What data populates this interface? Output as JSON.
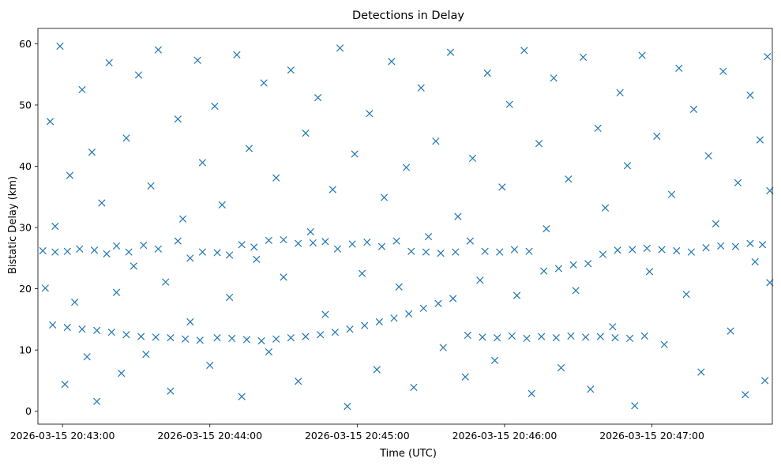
{
  "chart_data": {
    "type": "scatter",
    "title": "Detections in Delay",
    "xlabel": "Time (UTC)",
    "ylabel": "Bistatic Delay (km)",
    "marker": "x",
    "color": "#1f77b4",
    "grid": false,
    "legend": "none",
    "xlim": [
      "2026-03-15 20:42:50",
      "2026-03-15 20:47:49"
    ],
    "ylim": [
      -2.1,
      62.5
    ],
    "xticks": [
      "2026-03-15 20:43:00",
      "2026-03-15 20:44:00",
      "2026-03-15 20:45:00",
      "2026-03-15 20:46:00",
      "2026-03-15 20:47:00"
    ],
    "yticks": [
      0,
      10,
      20,
      30,
      40,
      50,
      60
    ],
    "series": [
      {
        "points": [
          [
            "2026-03-15 20:42:52",
            26.2
          ],
          [
            "2026-03-15 20:42:57",
            26.0
          ],
          [
            "2026-03-15 20:43:02",
            26.1
          ],
          [
            "2026-03-15 20:43:07",
            26.5
          ],
          [
            "2026-03-15 20:43:13",
            26.3
          ],
          [
            "2026-03-15 20:43:18",
            25.7
          ],
          [
            "2026-03-15 20:43:22",
            27.0
          ],
          [
            "2026-03-15 20:43:27",
            26.0
          ],
          [
            "2026-03-15 20:43:33",
            27.1
          ],
          [
            "2026-03-15 20:43:39",
            26.5
          ],
          [
            "2026-03-15 20:43:47",
            27.8
          ],
          [
            "2026-03-15 20:43:52",
            25.0
          ],
          [
            "2026-03-15 20:43:57",
            26.0
          ],
          [
            "2026-03-15 20:44:03",
            25.9
          ],
          [
            "2026-03-15 20:44:08",
            25.5
          ],
          [
            "2026-03-15 20:44:13",
            27.2
          ],
          [
            "2026-03-15 20:44:18",
            26.8
          ],
          [
            "2026-03-15 20:44:24",
            27.9
          ],
          [
            "2026-03-15 20:44:30",
            28.0
          ],
          [
            "2026-03-15 20:44:36",
            27.4
          ],
          [
            "2026-03-15 20:44:42",
            27.5
          ],
          [
            "2026-03-15 20:44:47",
            27.7
          ],
          [
            "2026-03-15 20:44:52",
            26.5
          ],
          [
            "2026-03-15 20:44:58",
            27.3
          ],
          [
            "2026-03-15 20:45:04",
            27.6
          ],
          [
            "2026-03-15 20:45:10",
            26.9
          ],
          [
            "2026-03-15 20:45:16",
            27.8
          ],
          [
            "2026-03-15 20:45:22",
            26.1
          ],
          [
            "2026-03-15 20:45:28",
            26.0
          ],
          [
            "2026-03-15 20:45:34",
            25.8
          ],
          [
            "2026-03-15 20:45:40",
            26.0
          ],
          [
            "2026-03-15 20:45:46",
            27.8
          ],
          [
            "2026-03-15 20:45:52",
            26.1
          ],
          [
            "2026-03-15 20:45:58",
            26.0
          ],
          [
            "2026-03-15 20:46:04",
            26.4
          ],
          [
            "2026-03-15 20:46:10",
            26.1
          ],
          [
            "2026-03-15 20:46:16",
            22.9
          ],
          [
            "2026-03-15 20:46:22",
            23.3
          ],
          [
            "2026-03-15 20:46:28",
            23.9
          ],
          [
            "2026-03-15 20:46:34",
            24.1
          ],
          [
            "2026-03-15 20:46:40",
            25.6
          ],
          [
            "2026-03-15 20:46:46",
            26.3
          ],
          [
            "2026-03-15 20:46:52",
            26.4
          ],
          [
            "2026-03-15 20:46:58",
            26.6
          ],
          [
            "2026-03-15 20:47:04",
            26.4
          ],
          [
            "2026-03-15 20:47:10",
            26.2
          ],
          [
            "2026-03-15 20:47:16",
            26.0
          ],
          [
            "2026-03-15 20:47:22",
            26.7
          ],
          [
            "2026-03-15 20:47:28",
            27.0
          ],
          [
            "2026-03-15 20:47:34",
            26.9
          ],
          [
            "2026-03-15 20:47:40",
            27.4
          ],
          [
            "2026-03-15 20:47:45",
            27.2
          ],
          [
            "2026-03-15 20:42:56",
            14.1
          ],
          [
            "2026-03-15 20:43:02",
            13.7
          ],
          [
            "2026-03-15 20:43:08",
            13.4
          ],
          [
            "2026-03-15 20:43:14",
            13.2
          ],
          [
            "2026-03-15 20:43:20",
            12.9
          ],
          [
            "2026-03-15 20:43:26",
            12.5
          ],
          [
            "2026-03-15 20:43:32",
            12.2
          ],
          [
            "2026-03-15 20:43:38",
            12.1
          ],
          [
            "2026-03-15 20:43:44",
            12.0
          ],
          [
            "2026-03-15 20:43:50",
            11.8
          ],
          [
            "2026-03-15 20:43:56",
            11.6
          ],
          [
            "2026-03-15 20:44:03",
            12.0
          ],
          [
            "2026-03-15 20:44:09",
            11.9
          ],
          [
            "2026-03-15 20:44:15",
            11.7
          ],
          [
            "2026-03-15 20:44:21",
            11.5
          ],
          [
            "2026-03-15 20:44:27",
            11.8
          ],
          [
            "2026-03-15 20:44:33",
            12.0
          ],
          [
            "2026-03-15 20:44:39",
            12.2
          ],
          [
            "2026-03-15 20:44:45",
            12.5
          ],
          [
            "2026-03-15 20:44:51",
            12.9
          ],
          [
            "2026-03-15 20:44:57",
            13.4
          ],
          [
            "2026-03-15 20:45:03",
            14.0
          ],
          [
            "2026-03-15 20:45:09",
            14.6
          ],
          [
            "2026-03-15 20:45:15",
            15.2
          ],
          [
            "2026-03-15 20:45:21",
            15.9
          ],
          [
            "2026-03-15 20:45:27",
            16.8
          ],
          [
            "2026-03-15 20:45:33",
            17.6
          ],
          [
            "2026-03-15 20:45:39",
            18.4
          ],
          [
            "2026-03-15 20:45:45",
            12.4
          ],
          [
            "2026-03-15 20:45:51",
            12.1
          ],
          [
            "2026-03-15 20:45:57",
            12.0
          ],
          [
            "2026-03-15 20:46:03",
            12.3
          ],
          [
            "2026-03-15 20:46:09",
            11.9
          ],
          [
            "2026-03-15 20:46:15",
            12.2
          ],
          [
            "2026-03-15 20:46:21",
            12.0
          ],
          [
            "2026-03-15 20:46:27",
            12.3
          ],
          [
            "2026-03-15 20:46:33",
            12.1
          ],
          [
            "2026-03-15 20:46:39",
            12.2
          ],
          [
            "2026-03-15 20:46:45",
            12.0
          ],
          [
            "2026-03-15 20:46:51",
            11.9
          ],
          [
            "2026-03-15 20:46:57",
            12.3
          ],
          [
            "2026-03-15 20:42:53",
            20.1
          ],
          [
            "2026-03-15 20:42:55",
            47.3
          ],
          [
            "2026-03-15 20:42:57",
            30.2
          ],
          [
            "2026-03-15 20:42:59",
            59.6
          ],
          [
            "2026-03-15 20:43:01",
            4.4
          ],
          [
            "2026-03-15 20:43:03",
            38.5
          ],
          [
            "2026-03-15 20:43:05",
            17.8
          ],
          [
            "2026-03-15 20:43:08",
            52.5
          ],
          [
            "2026-03-15 20:43:10",
            8.9
          ],
          [
            "2026-03-15 20:43:12",
            42.3
          ],
          [
            "2026-03-15 20:43:14",
            1.6
          ],
          [
            "2026-03-15 20:43:16",
            34.0
          ],
          [
            "2026-03-15 20:43:19",
            56.9
          ],
          [
            "2026-03-15 20:43:22",
            19.4
          ],
          [
            "2026-03-15 20:43:24",
            6.2
          ],
          [
            "2026-03-15 20:43:26",
            44.6
          ],
          [
            "2026-03-15 20:43:29",
            23.7
          ],
          [
            "2026-03-15 20:43:31",
            54.9
          ],
          [
            "2026-03-15 20:43:34",
            9.3
          ],
          [
            "2026-03-15 20:43:36",
            36.8
          ],
          [
            "2026-03-15 20:43:39",
            59.0
          ],
          [
            "2026-03-15 20:43:42",
            21.1
          ],
          [
            "2026-03-15 20:43:44",
            3.3
          ],
          [
            "2026-03-15 20:43:47",
            47.7
          ],
          [
            "2026-03-15 20:43:49",
            31.4
          ],
          [
            "2026-03-15 20:43:52",
            14.6
          ],
          [
            "2026-03-15 20:43:55",
            57.3
          ],
          [
            "2026-03-15 20:43:57",
            40.6
          ],
          [
            "2026-03-15 20:44:00",
            7.5
          ],
          [
            "2026-03-15 20:44:02",
            49.8
          ],
          [
            "2026-03-15 20:44:05",
            33.7
          ],
          [
            "2026-03-15 20:44:08",
            18.6
          ],
          [
            "2026-03-15 20:44:11",
            58.2
          ],
          [
            "2026-03-15 20:44:13",
            2.4
          ],
          [
            "2026-03-15 20:44:16",
            42.9
          ],
          [
            "2026-03-15 20:44:19",
            24.8
          ],
          [
            "2026-03-15 20:44:22",
            53.6
          ],
          [
            "2026-03-15 20:44:24",
            9.7
          ],
          [
            "2026-03-15 20:44:27",
            38.1
          ],
          [
            "2026-03-15 20:44:30",
            21.9
          ],
          [
            "2026-03-15 20:44:33",
            55.7
          ],
          [
            "2026-03-15 20:44:36",
            4.9
          ],
          [
            "2026-03-15 20:44:39",
            45.4
          ],
          [
            "2026-03-15 20:44:41",
            29.3
          ],
          [
            "2026-03-15 20:44:44",
            51.2
          ],
          [
            "2026-03-15 20:44:47",
            15.8
          ],
          [
            "2026-03-15 20:44:50",
            36.2
          ],
          [
            "2026-03-15 20:44:53",
            59.3
          ],
          [
            "2026-03-15 20:44:56",
            0.8
          ],
          [
            "2026-03-15 20:44:59",
            42.0
          ],
          [
            "2026-03-15 20:45:02",
            22.5
          ],
          [
            "2026-03-15 20:45:05",
            48.6
          ],
          [
            "2026-03-15 20:45:08",
            6.8
          ],
          [
            "2026-03-15 20:45:11",
            34.9
          ],
          [
            "2026-03-15 20:45:14",
            57.1
          ],
          [
            "2026-03-15 20:45:17",
            20.3
          ],
          [
            "2026-03-15 20:45:20",
            39.8
          ],
          [
            "2026-03-15 20:45:23",
            3.9
          ],
          [
            "2026-03-15 20:45:26",
            52.8
          ],
          [
            "2026-03-15 20:45:29",
            28.5
          ],
          [
            "2026-03-15 20:45:32",
            44.1
          ],
          [
            "2026-03-15 20:45:35",
            10.4
          ],
          [
            "2026-03-15 20:45:38",
            58.6
          ],
          [
            "2026-03-15 20:45:41",
            31.8
          ],
          [
            "2026-03-15 20:45:44",
            5.6
          ],
          [
            "2026-03-15 20:45:47",
            41.3
          ],
          [
            "2026-03-15 20:45:50",
            21.4
          ],
          [
            "2026-03-15 20:45:53",
            55.2
          ],
          [
            "2026-03-15 20:45:56",
            8.3
          ],
          [
            "2026-03-15 20:45:59",
            36.6
          ],
          [
            "2026-03-15 20:46:02",
            50.1
          ],
          [
            "2026-03-15 20:46:05",
            18.9
          ],
          [
            "2026-03-15 20:46:08",
            58.9
          ],
          [
            "2026-03-15 20:46:11",
            2.9
          ],
          [
            "2026-03-15 20:46:14",
            43.7
          ],
          [
            "2026-03-15 20:46:17",
            29.8
          ],
          [
            "2026-03-15 20:46:20",
            54.4
          ],
          [
            "2026-03-15 20:46:23",
            7.1
          ],
          [
            "2026-03-15 20:46:26",
            37.9
          ],
          [
            "2026-03-15 20:46:29",
            19.7
          ],
          [
            "2026-03-15 20:46:32",
            57.8
          ],
          [
            "2026-03-15 20:46:35",
            3.6
          ],
          [
            "2026-03-15 20:46:38",
            46.2
          ],
          [
            "2026-03-15 20:46:41",
            33.2
          ],
          [
            "2026-03-15 20:46:44",
            13.8
          ],
          [
            "2026-03-15 20:46:47",
            52.0
          ],
          [
            "2026-03-15 20:46:50",
            40.1
          ],
          [
            "2026-03-15 20:46:53",
            0.9
          ],
          [
            "2026-03-15 20:46:56",
            58.1
          ],
          [
            "2026-03-15 20:46:59",
            22.8
          ],
          [
            "2026-03-15 20:47:02",
            44.9
          ],
          [
            "2026-03-15 20:47:05",
            10.9
          ],
          [
            "2026-03-15 20:47:08",
            35.4
          ],
          [
            "2026-03-15 20:47:11",
            56.0
          ],
          [
            "2026-03-15 20:47:14",
            19.1
          ],
          [
            "2026-03-15 20:47:17",
            49.3
          ],
          [
            "2026-03-15 20:47:20",
            6.4
          ],
          [
            "2026-03-15 20:47:23",
            41.7
          ],
          [
            "2026-03-15 20:47:26",
            30.6
          ],
          [
            "2026-03-15 20:47:29",
            55.5
          ],
          [
            "2026-03-15 20:47:32",
            13.1
          ],
          [
            "2026-03-15 20:47:35",
            37.3
          ],
          [
            "2026-03-15 20:47:38",
            2.7
          ],
          [
            "2026-03-15 20:47:40",
            51.6
          ],
          [
            "2026-03-15 20:47:42",
            24.4
          ],
          [
            "2026-03-15 20:47:44",
            44.3
          ],
          [
            "2026-03-15 20:47:46",
            5.0
          ],
          [
            "2026-03-15 20:47:47",
            57.9
          ],
          [
            "2026-03-15 20:47:48",
            36.0
          ],
          [
            "2026-03-15 20:47:48",
            21.0
          ]
        ]
      }
    ]
  }
}
